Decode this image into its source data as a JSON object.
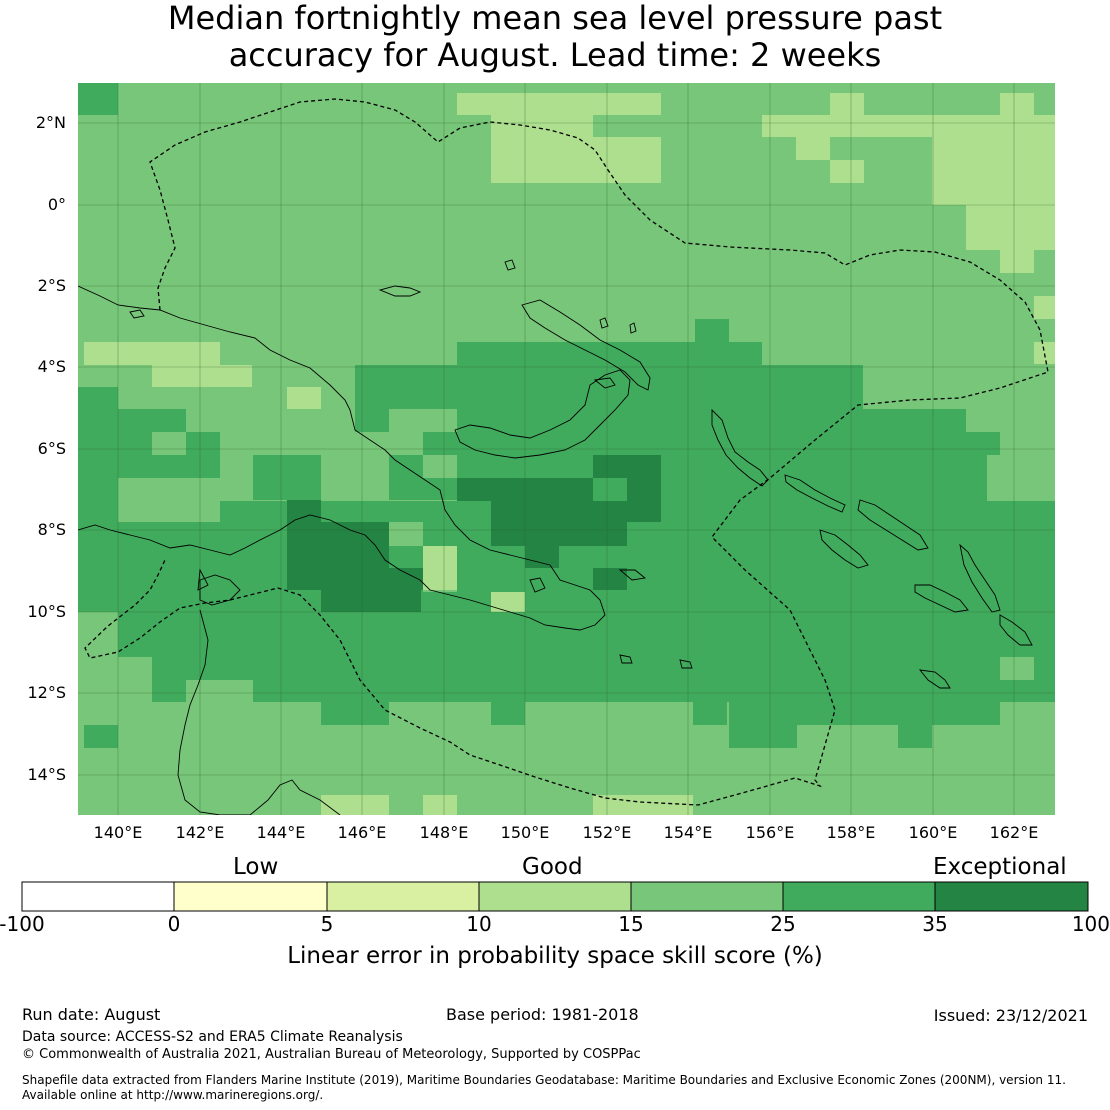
{
  "title": {
    "line1": "Median fortnightly mean sea level pressure past",
    "line2": "accuracy for August. Lead time: 2 weeks"
  },
  "map": {
    "lat_labels": [
      "2°N",
      "0°",
      "2°S",
      "4°S",
      "6°S",
      "8°S",
      "10°S",
      "12°S",
      "14°S"
    ],
    "lon_labels": [
      "140°E",
      "142°E",
      "144°E",
      "146°E",
      "148°E",
      "150°E",
      "152°E",
      "154°E",
      "156°E",
      "158°E",
      "160°E",
      "162°E"
    ],
    "colors": {
      "cat_10_15": "#addf8e",
      "cat_15_25": "#78c679",
      "cat_25_35": "#41ab5d",
      "cat_35_100": "#238443"
    }
  },
  "legend": {
    "categories": [
      "Low",
      "Good",
      "Exceptional"
    ],
    "ticks": [
      "-100",
      "0",
      "5",
      "10",
      "15",
      "25",
      "35",
      "100"
    ],
    "colors": [
      "#ffffff",
      "#ffffcc",
      "#d9f0a3",
      "#addf8e",
      "#78c679",
      "#41ab5d",
      "#238443"
    ],
    "title": "Linear error in probability space skill score (%)"
  },
  "footer": {
    "run_date": "Run date: August",
    "base_period": "Base period: 1981-2018",
    "issued": "Issued: 23/12/2021",
    "data_source": "Data source: ACCESS-S2 and ERA5 Climate Reanalysis",
    "copyright": "© Commonwealth of Australia 2021, Australian Bureau of Meteorology, Supported by COSPPac",
    "shapefile_line1": "Shapefile data extracted from Flanders Marine Institute (2019), Maritime Boundaries Geodatabase: Maritime Boundaries and Exclusive Economic Zones (200NM), version 11.",
    "shapefile_line2": "Available online at http://www.marineregions.org/."
  }
}
